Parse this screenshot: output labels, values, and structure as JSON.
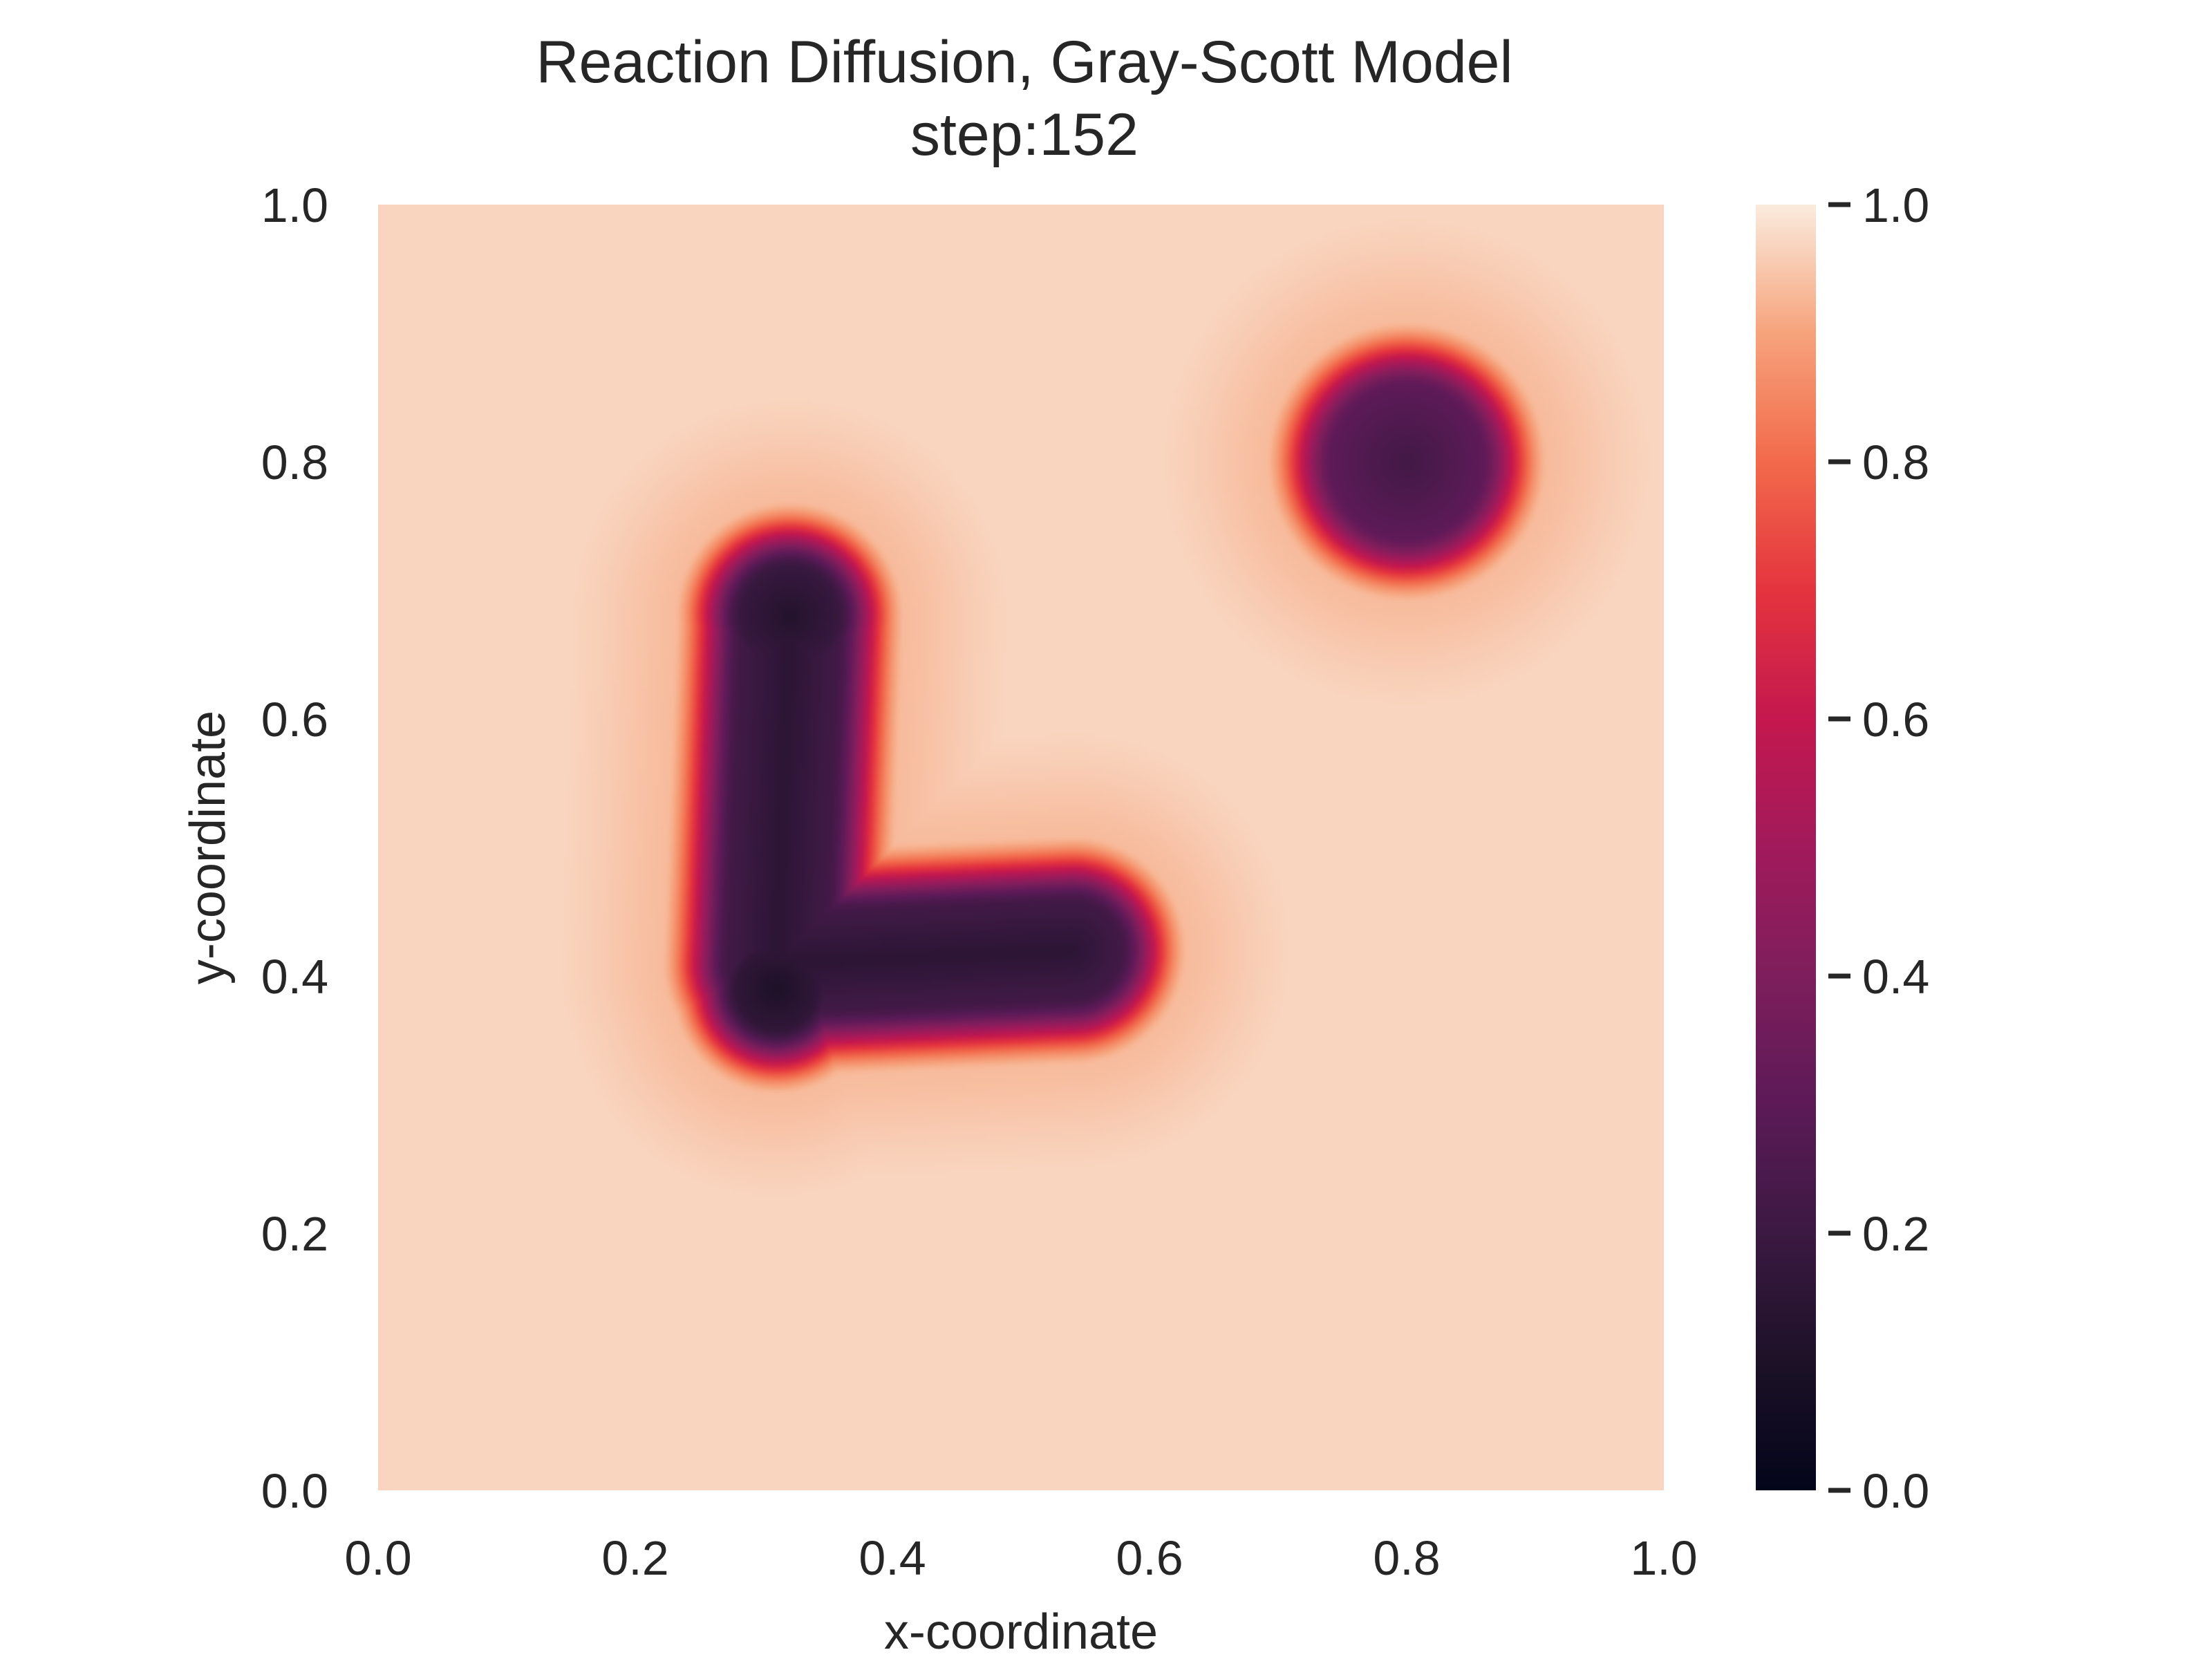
{
  "chart_data": {
    "type": "heatmap",
    "title": "Reaction Diffusion, Gray-Scott Model",
    "subtitle": "step:152",
    "xlabel": "x-coordinate",
    "ylabel": "y-coordinate",
    "xlim": [
      0.0,
      1.0
    ],
    "ylim": [
      0.0,
      1.0
    ],
    "xticks": [
      "0.0",
      "0.2",
      "0.4",
      "0.6",
      "0.8",
      "1.0"
    ],
    "yticks": [
      "0.0",
      "0.2",
      "0.4",
      "0.6",
      "0.8",
      "1.0"
    ],
    "colorbar": {
      "range": [
        0.0,
        1.0
      ],
      "ticks": [
        "0.0",
        "0.2",
        "0.4",
        "0.6",
        "0.8",
        "1.0"
      ],
      "colormap": "rocket"
    },
    "background_value": 0.97,
    "grid": false,
    "features": [
      {
        "shape": "disk",
        "center": [
          0.8,
          0.8
        ],
        "radius": 0.085,
        "min_value": 0.22
      },
      {
        "shape": "segment",
        "from": [
          0.32,
          0.67
        ],
        "to": [
          0.31,
          0.41
        ],
        "radius": 0.065,
        "min_value": 0.15
      },
      {
        "shape": "segment",
        "from": [
          0.31,
          0.41
        ],
        "to": [
          0.54,
          0.42
        ],
        "radius": 0.065,
        "min_value": 0.15
      },
      {
        "shape": "disk",
        "center": [
          0.32,
          0.68
        ],
        "radius": 0.065,
        "min_value": 0.12
      },
      {
        "shape": "disk",
        "center": [
          0.31,
          0.39
        ],
        "radius": 0.058,
        "min_value": 0.1
      }
    ]
  }
}
